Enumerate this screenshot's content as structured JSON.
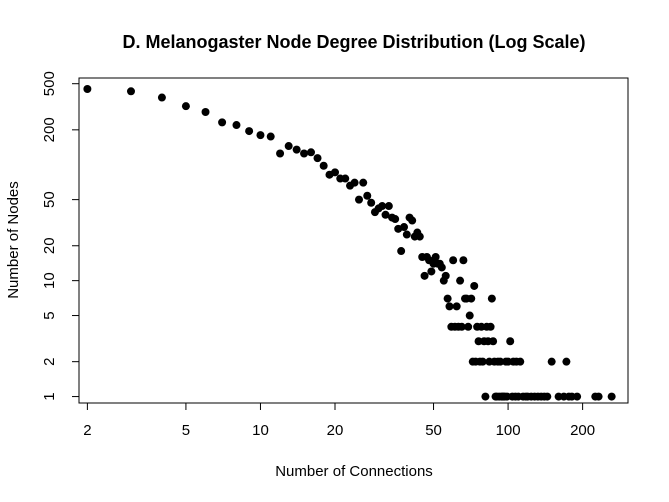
{
  "chart_data": {
    "type": "scatter",
    "title": "D. Melanogaster Node Degree Distribution (Log Scale)",
    "xlabel": "Number of Connections",
    "ylabel": "Number of Nodes",
    "x_scale": "log",
    "y_scale": "log",
    "xlim": [
      1.85,
      305
    ],
    "ylim": [
      0.88,
      560
    ],
    "x_ticks": [
      2,
      5,
      10,
      20,
      50,
      100,
      200
    ],
    "y_ticks": [
      1,
      2,
      5,
      10,
      20,
      50,
      200,
      500
    ],
    "grid": false,
    "legend": "none",
    "point_color": "#000000",
    "points": [
      [
        2,
        450
      ],
      [
        3,
        430
      ],
      [
        4,
        380
      ],
      [
        5,
        320
      ],
      [
        6,
        285
      ],
      [
        7,
        232
      ],
      [
        8,
        220
      ],
      [
        9,
        195
      ],
      [
        10,
        180
      ],
      [
        11,
        175
      ],
      [
        12,
        125
      ],
      [
        13,
        145
      ],
      [
        14,
        135
      ],
      [
        15,
        125
      ],
      [
        16,
        128
      ],
      [
        17,
        114
      ],
      [
        18,
        98
      ],
      [
        19,
        82
      ],
      [
        20,
        86
      ],
      [
        21,
        76
      ],
      [
        22,
        76
      ],
      [
        23,
        66
      ],
      [
        24,
        70
      ],
      [
        25,
        50
      ],
      [
        26,
        70
      ],
      [
        27,
        54
      ],
      [
        28,
        47
      ],
      [
        29,
        39
      ],
      [
        30,
        42
      ],
      [
        31,
        44
      ],
      [
        32,
        37
      ],
      [
        33,
        44
      ],
      [
        34,
        35
      ],
      [
        35,
        34
      ],
      [
        36,
        28
      ],
      [
        37,
        18
      ],
      [
        38,
        29
      ],
      [
        39,
        25
      ],
      [
        40,
        35
      ],
      [
        41,
        33
      ],
      [
        42,
        24
      ],
      [
        43,
        26
      ],
      [
        44,
        24
      ],
      [
        45,
        16
      ],
      [
        46,
        11
      ],
      [
        47,
        16
      ],
      [
        48,
        15
      ],
      [
        49,
        12
      ],
      [
        50,
        14
      ],
      [
        51,
        16
      ],
      [
        52,
        14
      ],
      [
        53,
        14
      ],
      [
        54,
        13
      ],
      [
        55,
        10
      ],
      [
        56,
        11
      ],
      [
        57,
        7
      ],
      [
        58,
        6
      ],
      [
        59,
        4
      ],
      [
        60,
        15
      ],
      [
        61,
        4
      ],
      [
        62,
        6
      ],
      [
        63,
        4
      ],
      [
        64,
        10
      ],
      [
        65,
        4
      ],
      [
        66,
        15
      ],
      [
        67,
        7
      ],
      [
        68,
        7
      ],
      [
        69,
        4
      ],
      [
        70,
        5
      ],
      [
        71,
        7
      ],
      [
        72,
        2
      ],
      [
        73,
        9
      ],
      [
        74,
        2
      ],
      [
        75,
        4
      ],
      [
        76,
        3
      ],
      [
        77,
        2
      ],
      [
        78,
        4
      ],
      [
        79,
        2
      ],
      [
        80,
        3
      ],
      [
        81,
        1
      ],
      [
        82,
        4
      ],
      [
        83,
        3
      ],
      [
        84,
        2
      ],
      [
        85,
        4
      ],
      [
        86,
        7
      ],
      [
        87,
        3
      ],
      [
        88,
        2
      ],
      [
        89,
        1
      ],
      [
        90,
        1
      ],
      [
        91,
        2
      ],
      [
        92,
        1
      ],
      [
        93,
        2
      ],
      [
        94,
        1
      ],
      [
        95,
        1
      ],
      [
        96,
        1
      ],
      [
        97,
        1
      ],
      [
        98,
        2
      ],
      [
        99,
        1
      ],
      [
        100,
        2
      ],
      [
        102,
        3
      ],
      [
        104,
        1
      ],
      [
        105,
        2
      ],
      [
        107,
        1
      ],
      [
        108,
        2
      ],
      [
        110,
        1
      ],
      [
        112,
        2
      ],
      [
        115,
        1
      ],
      [
        118,
        1
      ],
      [
        120,
        1
      ],
      [
        124,
        1
      ],
      [
        128,
        1
      ],
      [
        132,
        1
      ],
      [
        136,
        1
      ],
      [
        140,
        1
      ],
      [
        144,
        1
      ],
      [
        150,
        2
      ],
      [
        160,
        1
      ],
      [
        168,
        1
      ],
      [
        172,
        2
      ],
      [
        176,
        1
      ],
      [
        181,
        1
      ],
      [
        190,
        1
      ],
      [
        225,
        1
      ],
      [
        232,
        1
      ],
      [
        262,
        1
      ]
    ]
  }
}
